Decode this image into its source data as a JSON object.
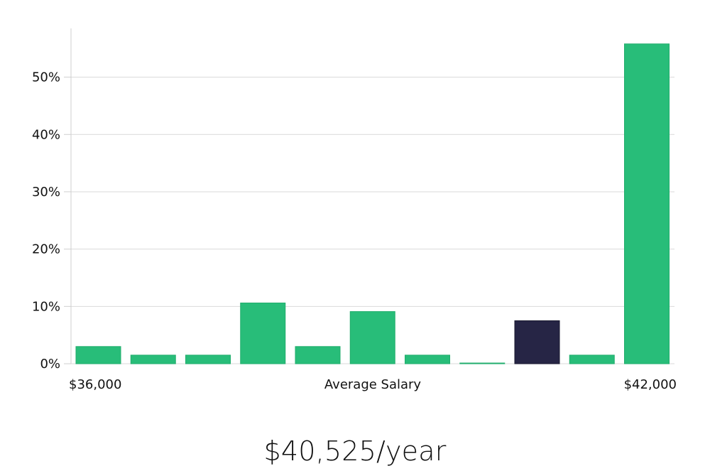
{
  "chart_data": {
    "type": "bar",
    "xlabel": "Average Salary",
    "x_start_label": "$36,000",
    "x_end_label": "$42,000",
    "y_tick_labels": [
      "0%",
      "10%",
      "20%",
      "30%",
      "40%",
      "50%"
    ],
    "y_ticks": [
      0,
      10,
      20,
      30,
      40,
      50
    ],
    "ylim": [
      0,
      58.5
    ],
    "grid": true,
    "values": [
      3.0,
      1.5,
      1.5,
      10.6,
      3.0,
      9.1,
      1.5,
      0.1,
      7.5,
      1.5,
      55.8
    ],
    "highlight_index": 8,
    "colors": {
      "bar": "#28bd79",
      "highlight": "#262545",
      "grid": "#d9d9d9",
      "axis": "#cfcfcf"
    }
  },
  "salary": {
    "value_text": "$40,525/year"
  }
}
